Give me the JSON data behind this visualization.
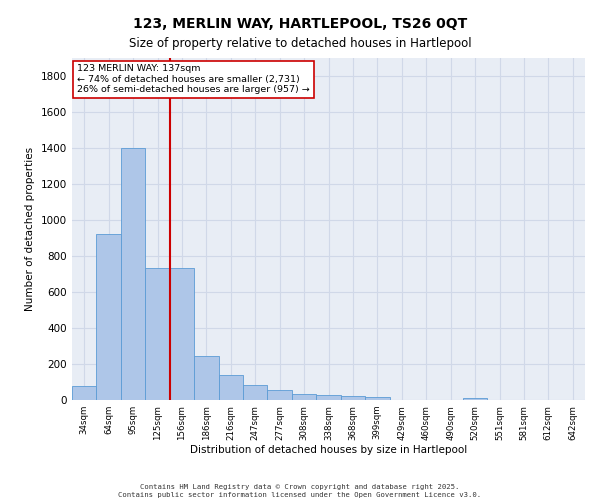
{
  "title1": "123, MERLIN WAY, HARTLEPOOL, TS26 0QT",
  "title2": "Size of property relative to detached houses in Hartlepool",
  "xlabel": "Distribution of detached houses by size in Hartlepool",
  "ylabel": "Number of detached properties",
  "categories": [
    "34sqm",
    "64sqm",
    "95sqm",
    "125sqm",
    "156sqm",
    "186sqm",
    "216sqm",
    "247sqm",
    "277sqm",
    "308sqm",
    "338sqm",
    "368sqm",
    "399sqm",
    "429sqm",
    "460sqm",
    "490sqm",
    "520sqm",
    "551sqm",
    "581sqm",
    "612sqm",
    "642sqm"
  ],
  "values": [
    80,
    920,
    1400,
    730,
    730,
    245,
    140,
    85,
    55,
    35,
    30,
    20,
    15,
    0,
    0,
    0,
    10,
    0,
    0,
    0,
    0
  ],
  "bar_color": "#aec6e8",
  "bar_edge_color": "#5b9bd5",
  "vline_x": 3.5,
  "vline_color": "#cc0000",
  "annotation_text": "123 MERLIN WAY: 137sqm\n← 74% of detached houses are smaller (2,731)\n26% of semi-detached houses are larger (957) →",
  "annotation_box_color": "#ffffff",
  "annotation_box_edge": "#cc0000",
  "ylim": [
    0,
    1900
  ],
  "yticks": [
    0,
    200,
    400,
    600,
    800,
    1000,
    1200,
    1400,
    1600,
    1800
  ],
  "grid_color": "#d0d8e8",
  "bg_color": "#e8edf5",
  "footer1": "Contains HM Land Registry data © Crown copyright and database right 2025.",
  "footer2": "Contains public sector information licensed under the Open Government Licence v3.0."
}
